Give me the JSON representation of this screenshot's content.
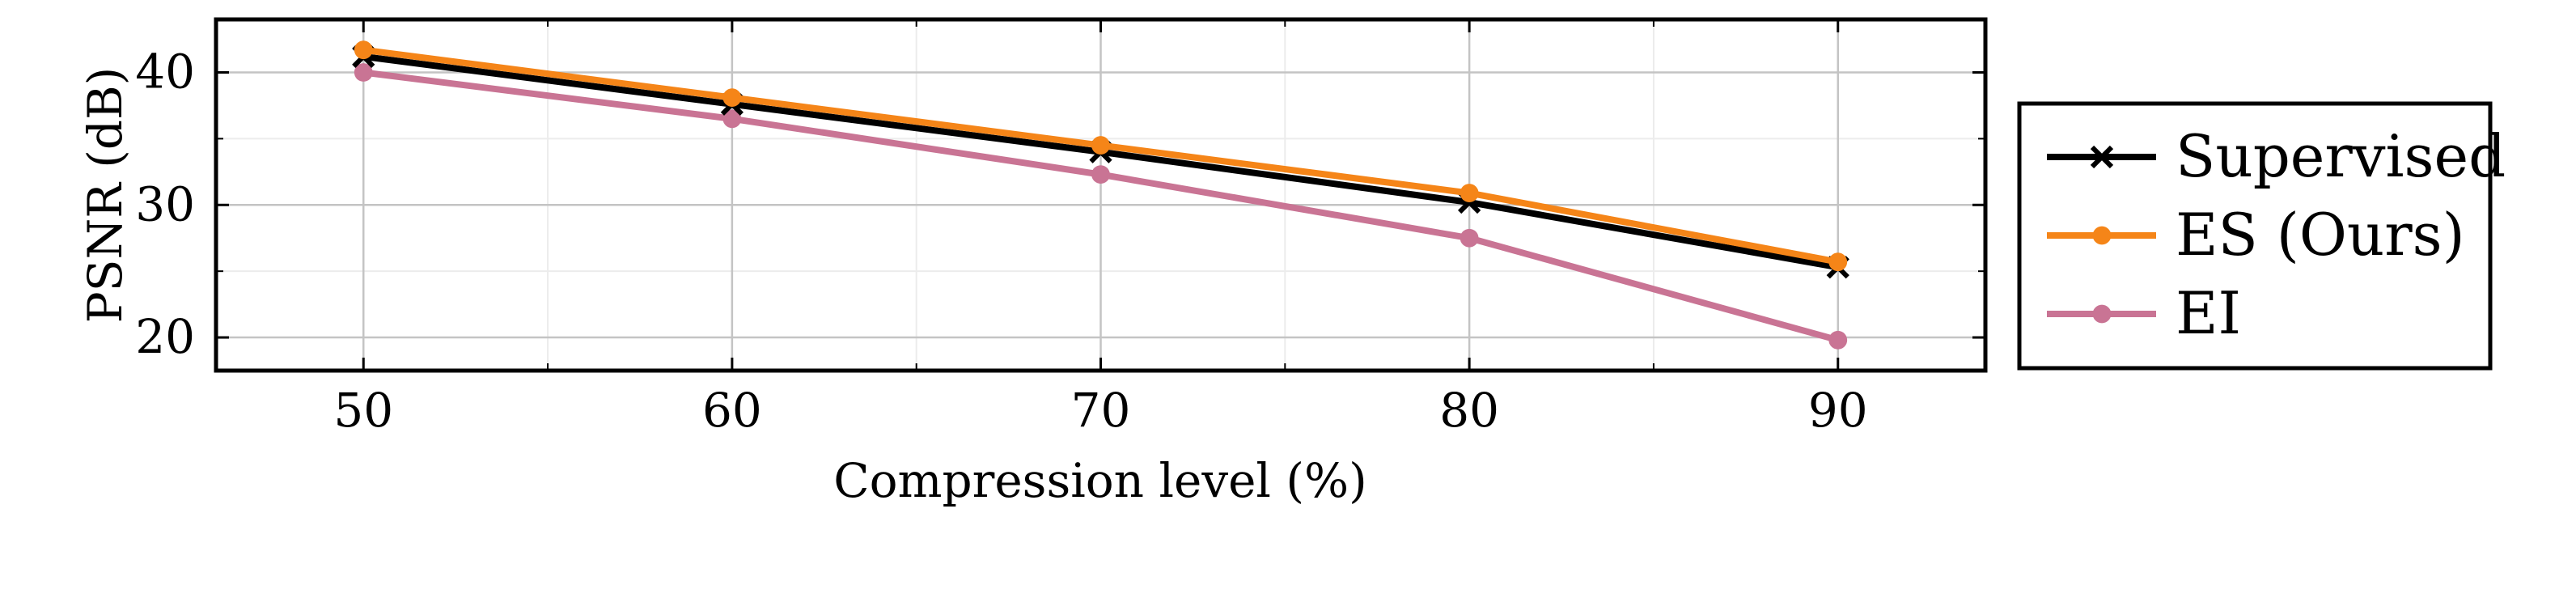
{
  "chart_data": {
    "type": "line",
    "xlabel": "Compression level (%)",
    "ylabel": "PSNR (dB)",
    "x": [
      50,
      60,
      70,
      80,
      90
    ],
    "xlim": [
      46,
      94
    ],
    "ylim": [
      17.5,
      44
    ],
    "xticks": [
      50,
      60,
      70,
      80,
      90
    ],
    "yticks": [
      20,
      30,
      40
    ],
    "grid": true,
    "legend_position": "right, outside plot",
    "series": [
      {
        "name": "Supervised",
        "values": [
          41.2,
          37.6,
          34.0,
          30.2,
          25.3
        ],
        "color": "#000000",
        "marker": "cross"
      },
      {
        "name": "ES (Ours)",
        "values": [
          41.7,
          38.1,
          34.5,
          30.9,
          25.7
        ],
        "color": "#f58518",
        "marker": "circle"
      },
      {
        "name": "EI",
        "values": [
          40.0,
          36.5,
          32.3,
          27.5,
          19.8
        ],
        "color": "#c97494",
        "marker": "circle"
      }
    ]
  }
}
